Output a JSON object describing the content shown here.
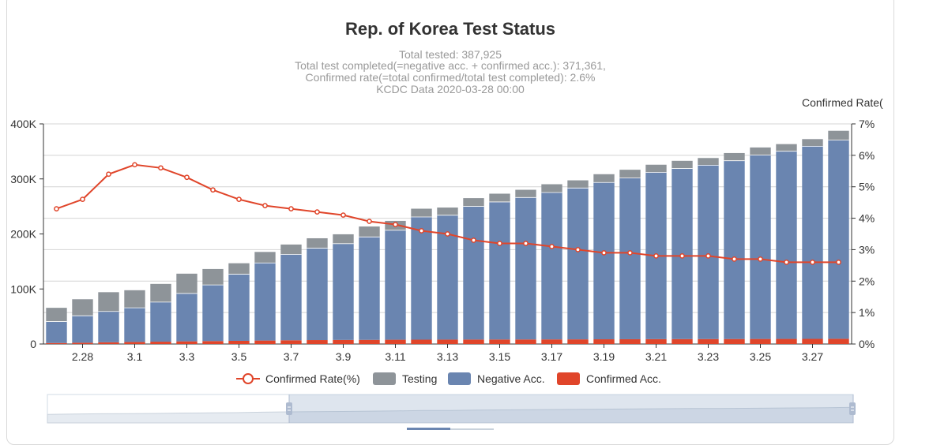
{
  "chart_data": {
    "type": "bar",
    "title": "Rep. of Korea Test Status",
    "subtitle_lines": [
      "Total tested: 387,925",
      "Total test completed(=negative acc. + confirmed acc.): 371,361,",
      "Confirmed rate(=total confirmed/total test completed): 2.6%",
      "KCDC Data 2020-03-28 00:00"
    ],
    "right_axis_label": "Confirmed Rate(",
    "categories": [
      "2.27",
      "2.28",
      "2.29",
      "3.1",
      "3.2",
      "3.3",
      "3.4",
      "3.5",
      "3.6",
      "3.7",
      "3.8",
      "3.9",
      "3.10",
      "3.11",
      "3.12",
      "3.13",
      "3.14",
      "3.15",
      "3.16",
      "3.17",
      "3.18",
      "3.19",
      "3.20",
      "3.21",
      "3.22",
      "3.23",
      "3.24",
      "3.25",
      "3.26",
      "3.27",
      "3.28"
    ],
    "x_tick_labels": [
      "2.28",
      "3.1",
      "3.3",
      "3.5",
      "3.7",
      "3.9",
      "3.11",
      "3.13",
      "3.15",
      "3.17",
      "3.19",
      "3.21",
      "3.23",
      "3.25",
      "3.27"
    ],
    "left_axis": {
      "ylim": [
        0,
        400000
      ],
      "tick_labels": [
        "0",
        "100K",
        "200K",
        "300K",
        "400K"
      ]
    },
    "right_axis": {
      "ylim": [
        0,
        7
      ],
      "tick_labels": [
        "0%",
        "1%",
        "2%",
        "3%",
        "4%",
        "5%",
        "6%",
        "7%"
      ]
    },
    "series": [
      {
        "name": "Confirmed Acc.",
        "kind": "stacked-bar",
        "color": "#e0452a",
        "values": [
          1766,
          2337,
          3150,
          3736,
          4212,
          4812,
          5328,
          5766,
          6284,
          6767,
          7134,
          7382,
          7513,
          7755,
          7869,
          7979,
          8086,
          8162,
          8236,
          8320,
          8413,
          8565,
          8652,
          8799,
          8897,
          8961,
          9037,
          9137,
          9241,
          9332,
          9478
        ]
      },
      {
        "name": "Negative Acc.",
        "kind": "stacked-bar",
        "color": "#6a85b0",
        "values": [
          39000,
          49000,
          56000,
          62000,
          72000,
          87000,
          102000,
          121000,
          141000,
          156000,
          167000,
          175000,
          187000,
          199000,
          223000,
          226000,
          242000,
          250000,
          258000,
          267000,
          275000,
          285000,
          293000,
          303000,
          310000,
          316000,
          324000,
          334000,
          341000,
          350000,
          361000
        ]
      },
      {
        "name": "Testing",
        "kind": "stacked-bar",
        "color": "#8e9499",
        "values": [
          25000,
          30000,
          35000,
          32000,
          33000,
          36000,
          29000,
          20000,
          20000,
          18000,
          18000,
          17000,
          19000,
          17000,
          15000,
          14000,
          15000,
          15000,
          14000,
          15000,
          14000,
          15000,
          15000,
          14000,
          14000,
          13000,
          14000,
          14000,
          13000,
          13000,
          17000
        ]
      },
      {
        "name": "Confirmed Rate(%)",
        "kind": "line",
        "axis": "right",
        "color": "#e0452a",
        "values": [
          4.3,
          4.6,
          5.4,
          5.7,
          5.6,
          5.3,
          4.9,
          4.6,
          4.4,
          4.3,
          4.2,
          4.1,
          3.9,
          3.8,
          3.6,
          3.5,
          3.3,
          3.2,
          3.2,
          3.1,
          3.0,
          2.9,
          2.9,
          2.8,
          2.8,
          2.8,
          2.7,
          2.7,
          2.6,
          2.6,
          2.6
        ]
      }
    ],
    "legend": {
      "placement": "bottom-center",
      "items": [
        {
          "label": "Confirmed Rate(%)",
          "color": "#e0452a",
          "symbol": "line-circle"
        },
        {
          "label": "Testing",
          "color": "#8e9499",
          "symbol": "box"
        },
        {
          "label": "Negative Acc.",
          "color": "#6a85b0",
          "symbol": "box"
        },
        {
          "label": "Confirmed Acc.",
          "color": "#e0452a",
          "symbol": "box"
        }
      ]
    },
    "data_zoom": {
      "start_fraction": 0.3,
      "end_fraction": 1.0
    }
  }
}
